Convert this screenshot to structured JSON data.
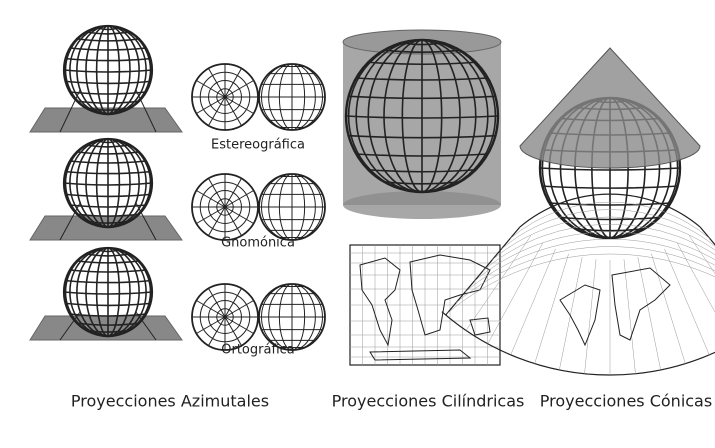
{
  "azimuthal_variants": [
    "Estereográfica",
    "Gnomónica",
    "Ortográfica"
  ],
  "sections": [
    "Proyecciones Azimutales",
    "Proyecciones Cilíndricas",
    "Proyecciones Cónicas"
  ]
}
